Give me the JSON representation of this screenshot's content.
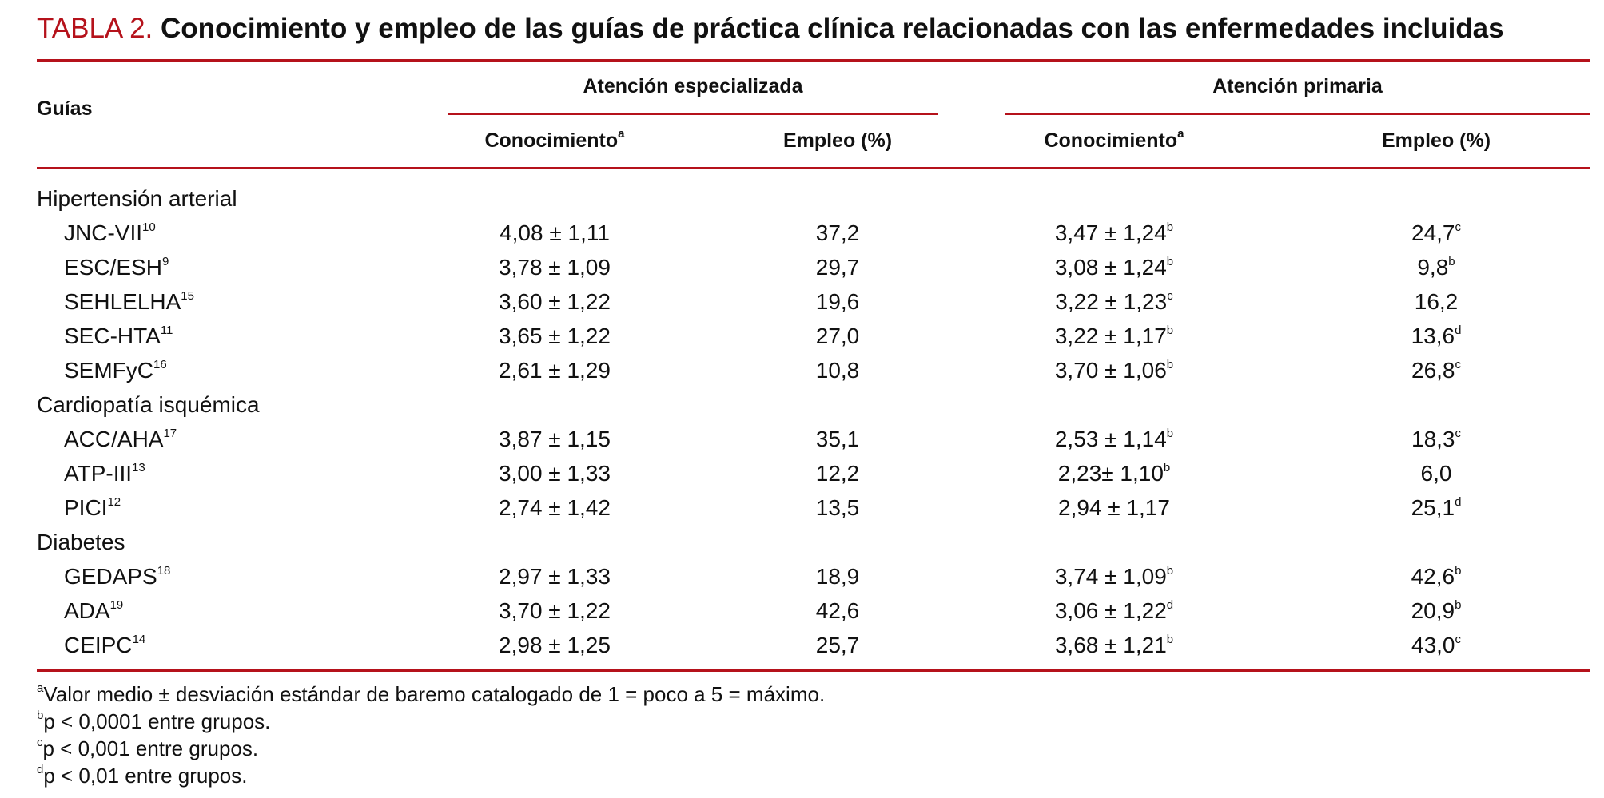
{
  "title": {
    "label": "TABLA 2.",
    "text": "Conocimiento y empleo de las guías de práctica clínica relacionadas con las enfermedades incluidas"
  },
  "header": {
    "first": "Guías",
    "groups": [
      "Atención especializada",
      "Atención primaria"
    ],
    "subcolumns": [
      {
        "t": "Conocimiento",
        "sup": "a"
      },
      {
        "t": "Empleo (%)"
      },
      {
        "t": "Conocimiento",
        "sup": "a"
      },
      {
        "t": "Empleo (%)"
      }
    ]
  },
  "sections": [
    {
      "name": "Hipertensión arterial",
      "rows": [
        {
          "name": "JNC-VII",
          "ref": "10",
          "cells": [
            {
              "t": "4,08 ± 1,11"
            },
            {
              "t": "37,2"
            },
            {
              "t": "3,47 ± 1,24",
              "sup": "b"
            },
            {
              "t": "24,7",
              "sup": "c"
            }
          ]
        },
        {
          "name": "ESC/ESH",
          "ref": "9",
          "cells": [
            {
              "t": "3,78 ± 1,09"
            },
            {
              "t": "29,7"
            },
            {
              "t": "3,08 ± 1,24",
              "sup": "b"
            },
            {
              "t": "9,8",
              "sup": "b"
            }
          ]
        },
        {
          "name": "SEHLELHA",
          "ref": "15",
          "cells": [
            {
              "t": "3,60 ± 1,22"
            },
            {
              "t": "19,6"
            },
            {
              "t": "3,22 ± 1,23",
              "sup": "c"
            },
            {
              "t": "16,2"
            }
          ]
        },
        {
          "name": "SEC-HTA",
          "ref": "11",
          "cells": [
            {
              "t": "3,65 ± 1,22"
            },
            {
              "t": "27,0"
            },
            {
              "t": "3,22 ± 1,17",
              "sup": "b"
            },
            {
              "t": "13,6",
              "sup": "d"
            }
          ]
        },
        {
          "name": "SEMFyC",
          "ref": "16",
          "cells": [
            {
              "t": "2,61 ± 1,29"
            },
            {
              "t": "10,8"
            },
            {
              "t": "3,70 ± 1,06",
              "sup": "b"
            },
            {
              "t": "26,8",
              "sup": "c"
            }
          ]
        }
      ]
    },
    {
      "name": "Cardiopatía isquémica",
      "rows": [
        {
          "name": "ACC/AHA",
          "ref": "17",
          "cells": [
            {
              "t": "3,87 ± 1,15"
            },
            {
              "t": "35,1"
            },
            {
              "t": "2,53 ± 1,14",
              "sup": "b"
            },
            {
              "t": "18,3",
              "sup": "c"
            }
          ]
        },
        {
          "name": "ATP-III",
          "ref": "13",
          "cells": [
            {
              "t": "3,00 ± 1,33"
            },
            {
              "t": "12,2"
            },
            {
              "t": "2,23± 1,10",
              "sup": "b"
            },
            {
              "t": "6,0"
            }
          ]
        },
        {
          "name": "PICI",
          "ref": "12",
          "cells": [
            {
              "t": "2,74 ± 1,42"
            },
            {
              "t": "13,5"
            },
            {
              "t": "2,94 ± 1,17"
            },
            {
              "t": "25,1",
              "sup": "d"
            }
          ]
        }
      ]
    },
    {
      "name": "Diabetes",
      "rows": [
        {
          "name": "GEDAPS",
          "ref": "18",
          "cells": [
            {
              "t": "2,97 ± 1,33"
            },
            {
              "t": "18,9"
            },
            {
              "t": "3,74 ± 1,09",
              "sup": "b"
            },
            {
              "t": "42,6",
              "sup": "b"
            }
          ]
        },
        {
          "name": "ADA",
          "ref": "19",
          "cells": [
            {
              "t": "3,70 ± 1,22"
            },
            {
              "t": "42,6"
            },
            {
              "t": "3,06 ± 1,22",
              "sup": "d"
            },
            {
              "t": "20,9",
              "sup": "b"
            }
          ]
        },
        {
          "name": "CEIPC",
          "ref": "14",
          "cells": [
            {
              "t": "2,98 ± 1,25"
            },
            {
              "t": "25,7"
            },
            {
              "t": "3,68 ± 1,21",
              "sup": "b"
            },
            {
              "t": "43,0",
              "sup": "c"
            }
          ]
        }
      ]
    }
  ],
  "footnotes": [
    {
      "mark": "a",
      "text": "Valor medio ± desviación estándar de baremo catalogado de 1 = poco a 5 = máximo."
    },
    {
      "mark": "b",
      "text": "p < 0,0001 entre grupos."
    },
    {
      "mark": "c",
      "text": "p < 0,001 entre grupos."
    },
    {
      "mark": "d",
      "text": "p < 0,01 entre grupos."
    }
  ]
}
